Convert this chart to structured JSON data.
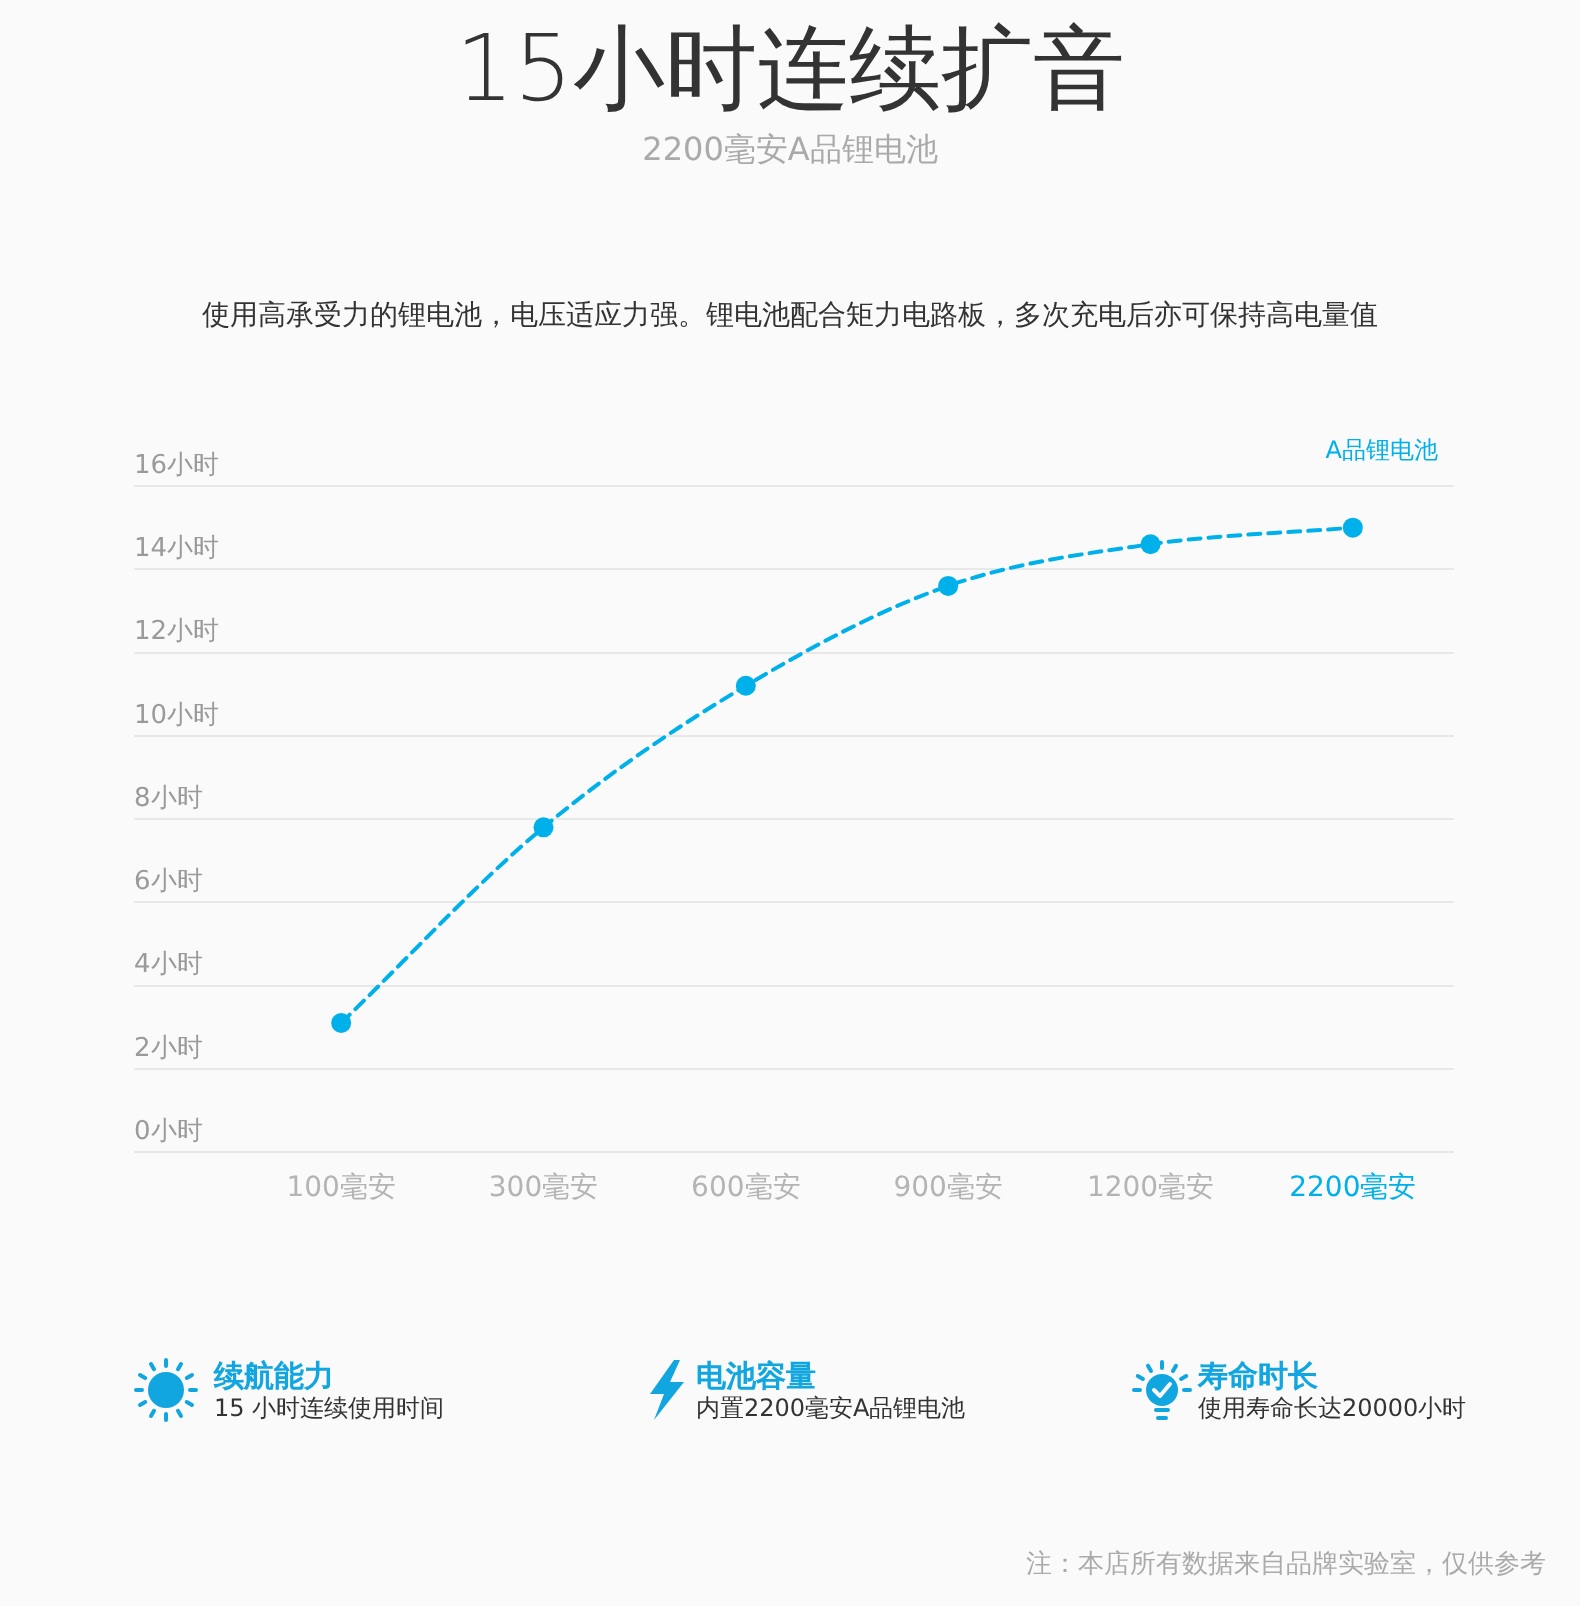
{
  "chart_data": {
    "type": "line",
    "title": "15小时连续扩音",
    "subtitle": "2200毫安A品锂电池",
    "categories": [
      "100毫安",
      "300毫安",
      "600毫安",
      "900毫安",
      "1200毫安",
      "2200毫安"
    ],
    "series": [
      {
        "name": "A品锂电池",
        "color": "#00b0ea",
        "values": [
          3.1,
          7.8,
          11.2,
          13.6,
          14.6,
          15
        ]
      }
    ],
    "ylim": [
      0,
      16
    ],
    "yticks": [
      {
        "value": 0,
        "label": "0小时"
      },
      {
        "value": 2,
        "label": "2小时"
      },
      {
        "value": 4,
        "label": "4小时"
      },
      {
        "value": 6,
        "label": "6小时"
      },
      {
        "value": 8,
        "label": "8小时"
      },
      {
        "value": 10,
        "label": "10小时"
      },
      {
        "value": 12,
        "label": "12小时"
      },
      {
        "value": 14,
        "label": "14小时"
      },
      {
        "value": 16,
        "label": "16小时"
      }
    ],
    "grid": "y",
    "legend": "top right",
    "marker": "circle",
    "line_style": "dashed",
    "annotations": [
      "使用高承受力的锂电池，电压适应力强。锂电池配合矩力电路板，多次充电后亦可保持高电量值",
      "续航能力",
      "15 小时连续使用时间",
      "电池容量",
      "内置2200毫安A品锂电池",
      "寿命时长",
      "使用寿命长达20000小时",
      "注：本店所有数据来自品牌实验室，仅供参考"
    ]
  }
}
